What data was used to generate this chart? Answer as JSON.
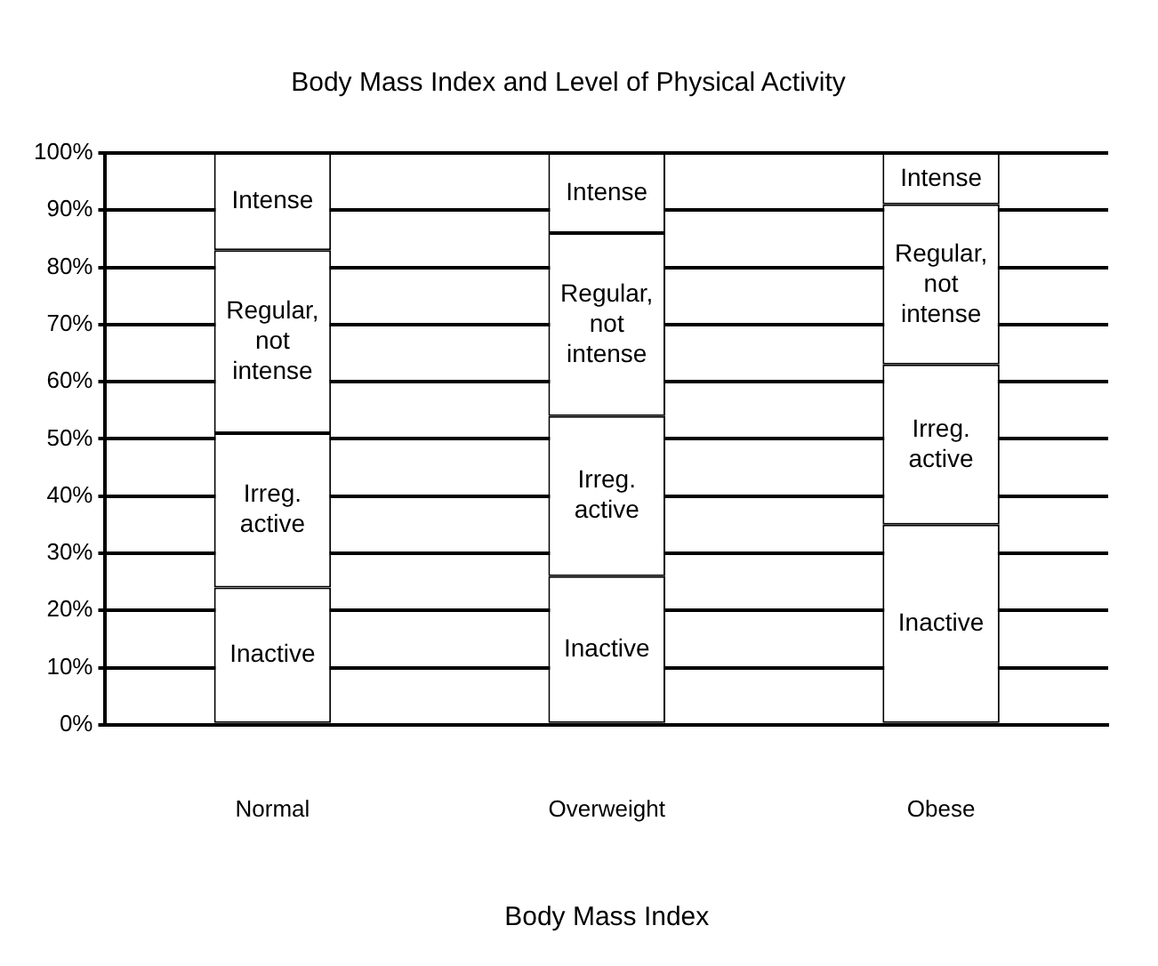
{
  "chart_data": {
    "type": "bar",
    "title": "Body Mass Index and Level of Physical Activity",
    "xlabel": "Body Mass Index",
    "categories": [
      "Normal",
      "Overweight",
      "Obese"
    ],
    "stacked": true,
    "legend": false,
    "grid": "y",
    "ylim": [
      0,
      100
    ],
    "yticks": [
      {
        "value": 0,
        "label": "0%"
      },
      {
        "value": 10,
        "label": "10%"
      },
      {
        "value": 20,
        "label": "20%"
      },
      {
        "value": 30,
        "label": "30%"
      },
      {
        "value": 40,
        "label": "40%"
      },
      {
        "value": 50,
        "label": "50%"
      },
      {
        "value": 60,
        "label": "60%"
      },
      {
        "value": 70,
        "label": "70%"
      },
      {
        "value": 80,
        "label": "80%"
      },
      {
        "value": 90,
        "label": "90%"
      },
      {
        "value": 100,
        "label": "100%"
      }
    ],
    "series": [
      {
        "name": "Inactive",
        "color": "#ffffff",
        "values": [
          24,
          26,
          35
        ]
      },
      {
        "name": "Irreg. active",
        "color": "#ffffff",
        "values": [
          27,
          28,
          28
        ]
      },
      {
        "name": "Regular, not intense",
        "color": "#ffffff",
        "values": [
          32,
          32,
          28
        ]
      },
      {
        "name": "Intense",
        "color": "#ffffff",
        "values": [
          17,
          14,
          9
        ]
      }
    ]
  }
}
